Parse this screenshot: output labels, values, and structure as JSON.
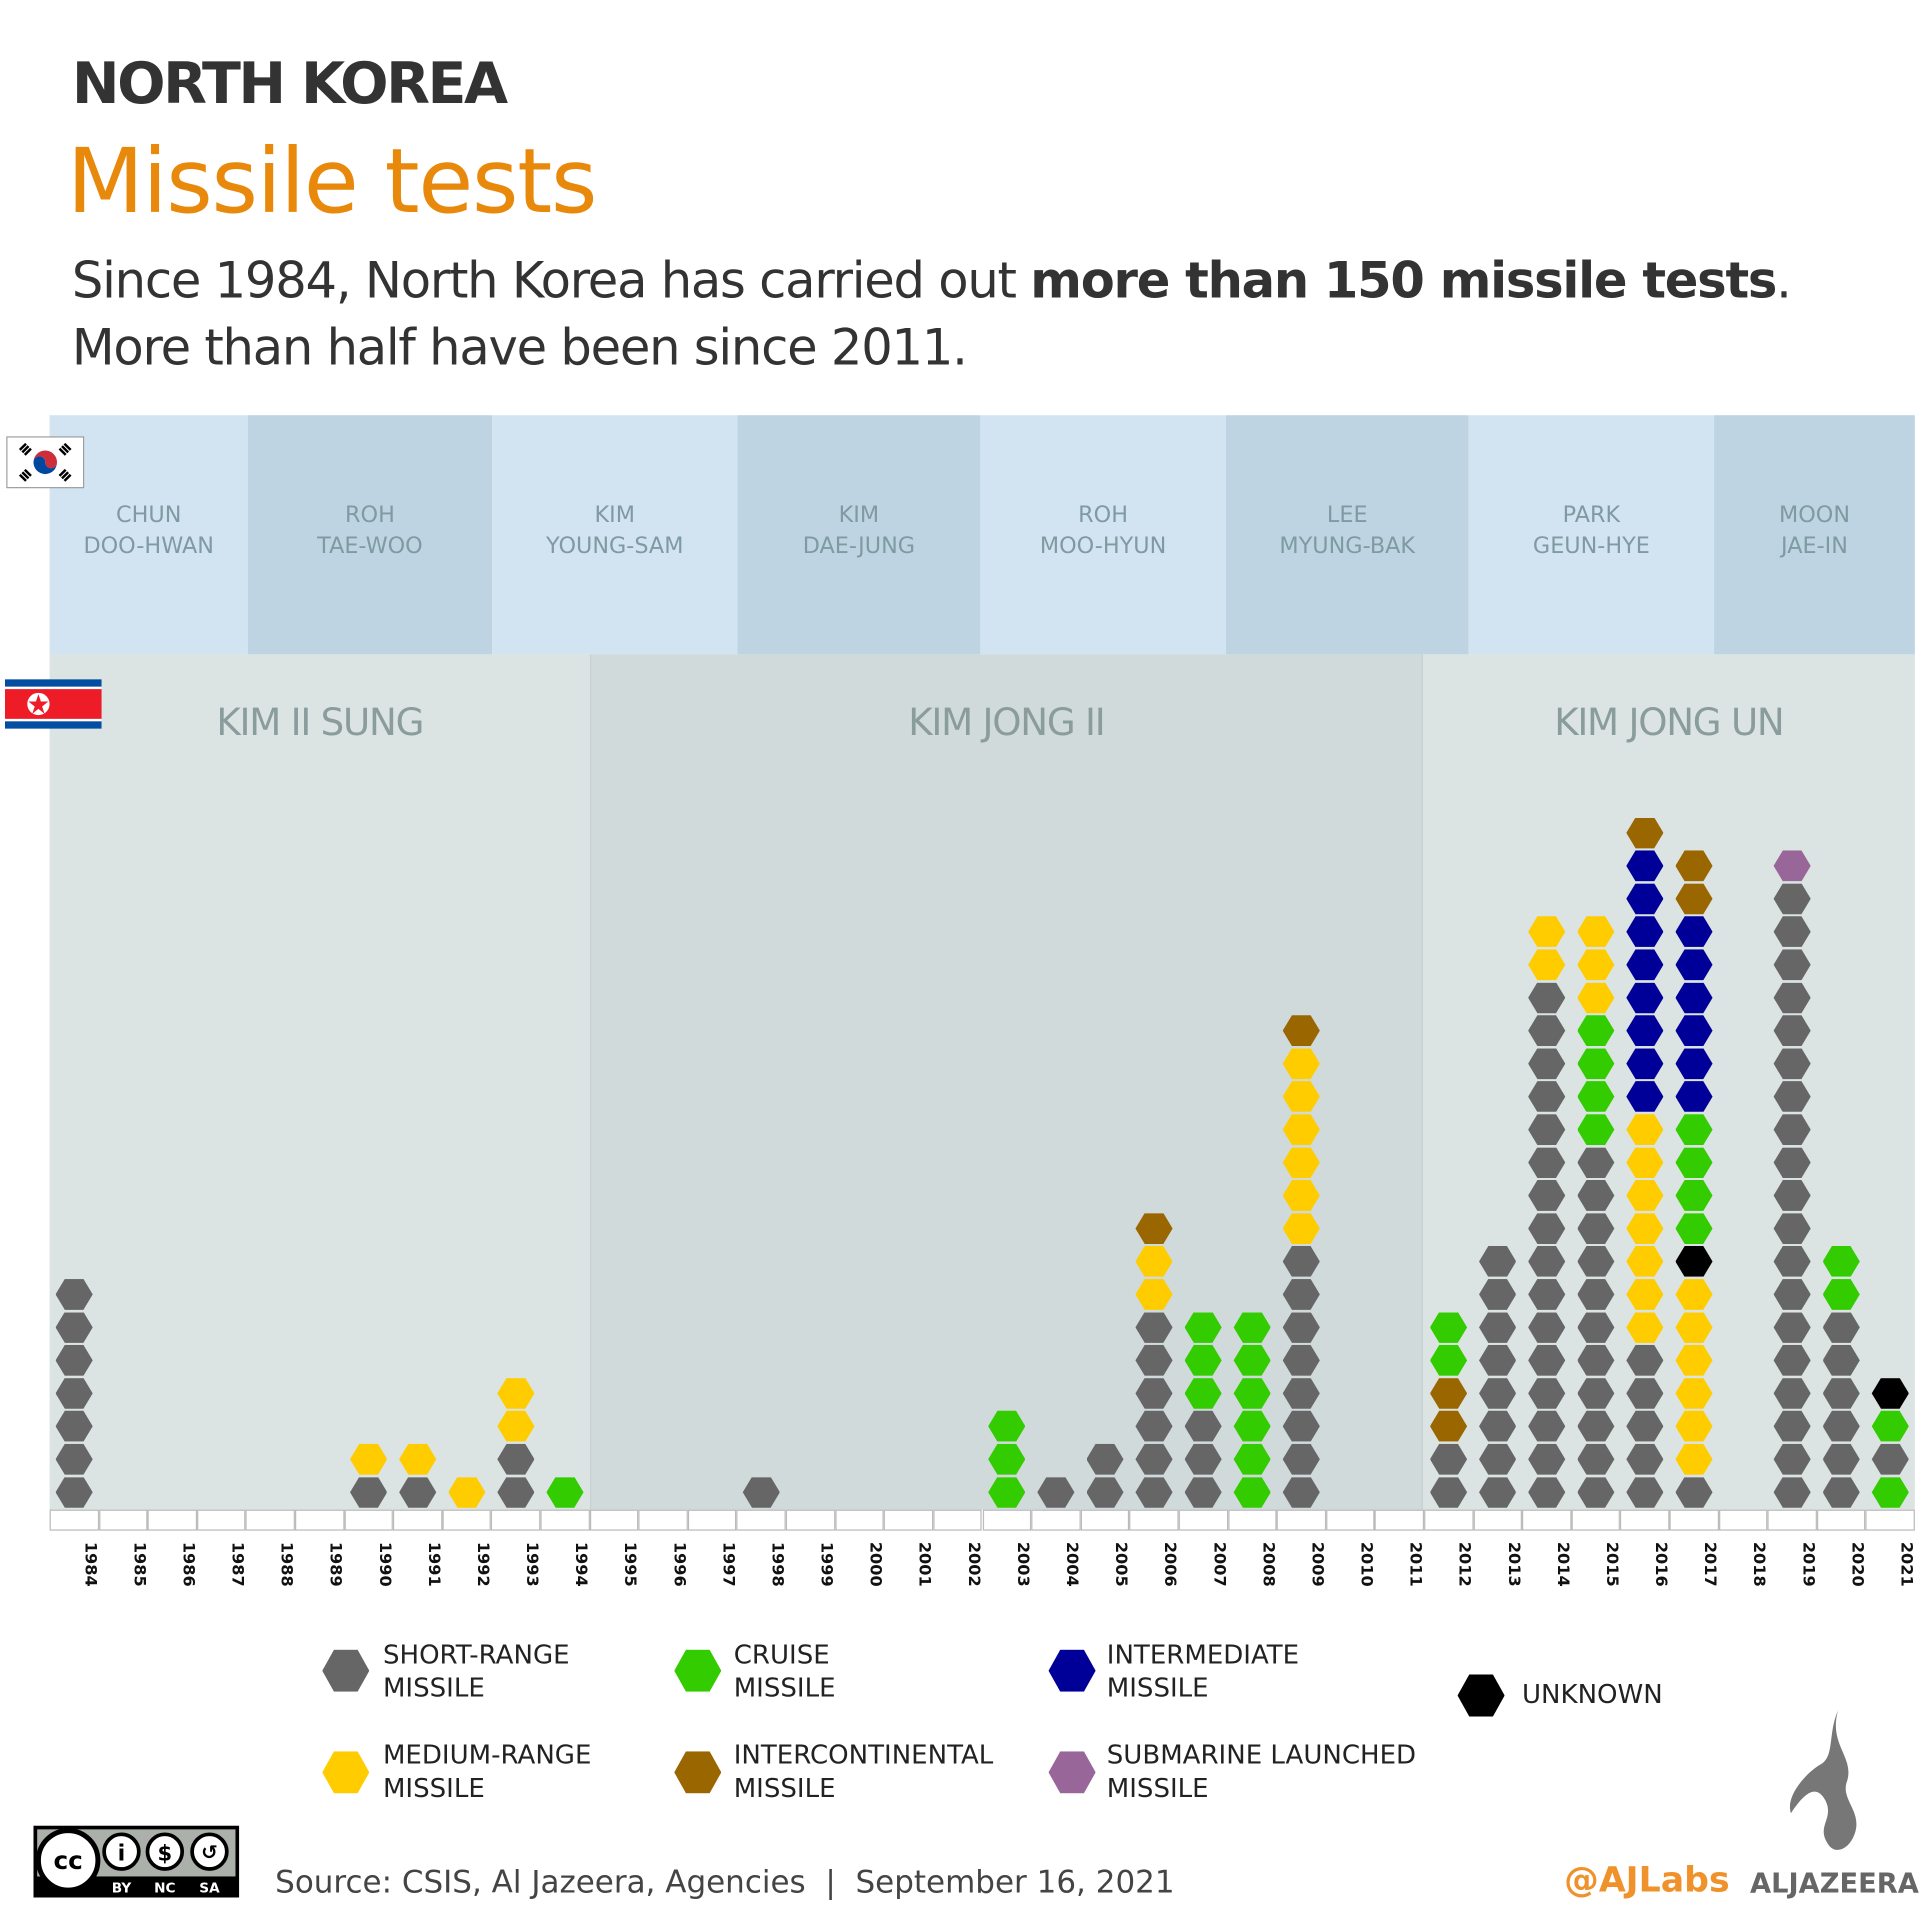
{
  "header": {
    "kicker": "NORTH KOREA",
    "title": "Missile tests",
    "subtitle_line1_pre": "Since 1984, North Korea has carried out ",
    "subtitle_line1_bold": "more than 150 missile tests",
    "subtitle_line1_post": ".",
    "subtitle_line2": "More than half have been since 2011."
  },
  "south_korea_presidents": [
    {
      "line1": "CHUN",
      "line2": "DOO-HWAN",
      "color": "#d2e4f2"
    },
    {
      "line1": "ROH",
      "line2": "TAE-WOO",
      "color": "#bed4e2"
    },
    {
      "line1": "KIM",
      "line2": "YOUNG-SAM",
      "color": "#d2e4f2"
    },
    {
      "line1": "KIM",
      "line2": "DAE-JUNG",
      "color": "#bed4e2"
    },
    {
      "line1": "ROH",
      "line2": "MOO-HYUN",
      "color": "#d2e4f2"
    },
    {
      "line1": "LEE",
      "line2": "MYUNG-BAK",
      "color": "#bed4e2"
    },
    {
      "line1": "PARK",
      "line2": "GEUN-HYE",
      "color": "#d2e4f2"
    },
    {
      "line1": "MOON",
      "line2": "JAE-IN",
      "color": "#bed4e2"
    }
  ],
  "north_korea_leaders": [
    {
      "name": "KIM Il SUNG",
      "display": "KIM II SUNG",
      "color": "#dbe4e3"
    },
    {
      "name": "KIM JONG Il",
      "display": "KIM JONG II",
      "color": "#d0dadb"
    },
    {
      "name": "KIM JONG UN",
      "display": "KIM JONG UN",
      "color": "#dbe4e3"
    }
  ],
  "chart_data": {
    "type": "stacked unit chart (hexagons)",
    "x_categories": [
      "1984",
      "1985",
      "1986",
      "1987",
      "1988",
      "1989",
      "1990",
      "1991",
      "1992",
      "1993",
      "1994",
      "1995",
      "1996",
      "1997",
      "1998",
      "1999",
      "2000",
      "2001",
      "2002",
      "2003",
      "2004",
      "2005",
      "2006",
      "2007",
      "2008",
      "2009",
      "2010",
      "2011",
      "2012",
      "2013",
      "2014",
      "2015",
      "2016",
      "2017",
      "2018",
      "2019",
      "2020",
      "2021"
    ],
    "types": {
      "SR": {
        "label1": "SHORT-RANGE",
        "label2": "MISSILE",
        "color": "#666666"
      },
      "CR": {
        "label1": "CRUISE",
        "label2": "MISSILE",
        "color": "#33cc00"
      },
      "IM": {
        "label1": "INTERMEDIATE",
        "label2": "MISSILE",
        "color": "#000099"
      },
      "UN": {
        "label1": "UNKNOWN",
        "label2": "",
        "color": "#000000"
      },
      "MR": {
        "label1": "MEDIUM-RANGE",
        "label2": "MISSILE",
        "color": "#ffcc00"
      },
      "IC": {
        "label1": "INTERCONTINENTAL",
        "label2": "MISSILE",
        "color": "#996600"
      },
      "SL": {
        "label1": "SUBMARINE LAUNCHED",
        "label2": "MISSILE",
        "color": "#996699"
      }
    },
    "stacks_bottom_to_top": {
      "1984": [
        "SR",
        "SR",
        "SR",
        "SR",
        "SR",
        "SR",
        "SR"
      ],
      "1990": [
        "SR",
        "MR"
      ],
      "1991": [
        "SR",
        "MR"
      ],
      "1992": [
        "MR"
      ],
      "1993": [
        "SR",
        "SR",
        "MR",
        "MR"
      ],
      "1994": [
        "CR"
      ],
      "1998": [
        "SR"
      ],
      "2003": [
        "CR",
        "CR",
        "CR"
      ],
      "2004": [
        "SR"
      ],
      "2005": [
        "SR",
        "SR"
      ],
      "2006": [
        "SR",
        "SR",
        "SR",
        "SR",
        "SR",
        "SR",
        "MR",
        "MR",
        "IC"
      ],
      "2007": [
        "SR",
        "SR",
        "SR",
        "CR",
        "CR",
        "CR"
      ],
      "2008": [
        "CR",
        "CR",
        "CR",
        "CR",
        "CR",
        "CR"
      ],
      "2009": [
        "SR",
        "SR",
        "SR",
        "SR",
        "SR",
        "SR",
        "SR",
        "SR",
        "MR",
        "MR",
        "MR",
        "MR",
        "MR",
        "MR",
        "IC"
      ],
      "2012": [
        "SR",
        "SR",
        "IC",
        "IC",
        "CR",
        "CR"
      ],
      "2013": [
        "SR",
        "SR",
        "SR",
        "SR",
        "SR",
        "SR",
        "SR",
        "SR"
      ],
      "2014": [
        "SR",
        "SR",
        "SR",
        "SR",
        "SR",
        "SR",
        "SR",
        "SR",
        "SR",
        "SR",
        "SR",
        "SR",
        "SR",
        "SR",
        "SR",
        "SR",
        "MR",
        "MR"
      ],
      "2015": [
        "SR",
        "SR",
        "SR",
        "SR",
        "SR",
        "SR",
        "SR",
        "SR",
        "SR",
        "SR",
        "SR",
        "CR",
        "CR",
        "CR",
        "CR",
        "MR",
        "MR",
        "MR"
      ],
      "2016": [
        "SR",
        "SR",
        "SR",
        "SR",
        "SR",
        "MR",
        "MR",
        "MR",
        "MR",
        "MR",
        "MR",
        "MR",
        "IM",
        "IM",
        "IM",
        "IM",
        "IM",
        "IM",
        "IM",
        "IM",
        "IC"
      ],
      "2017": [
        "SR",
        "MR",
        "MR",
        "MR",
        "MR",
        "MR",
        "MR",
        "UN",
        "CR",
        "CR",
        "CR",
        "CR",
        "IM",
        "IM",
        "IM",
        "IM",
        "IM",
        "IM",
        "IC",
        "IC"
      ],
      "2019": [
        "SR",
        "SR",
        "SR",
        "SR",
        "SR",
        "SR",
        "SR",
        "SR",
        "SR",
        "SR",
        "SR",
        "SR",
        "SR",
        "SR",
        "SR",
        "SR",
        "SR",
        "SR",
        "SR",
        "SL"
      ],
      "2020": [
        "SR",
        "SR",
        "SR",
        "SR",
        "SR",
        "SR",
        "CR",
        "CR"
      ],
      "2021": [
        "CR",
        "SR",
        "CR",
        "UN"
      ]
    }
  },
  "legend_order": [
    "SR",
    "CR",
    "IM",
    "UN",
    "MR",
    "IC",
    "SL"
  ],
  "footer": {
    "source": "Source: CSIS, Al Jazeera, Agencies  |  September 16, 2021",
    "ajlabs": "@AJLabs",
    "brand": "ALJAZEERA",
    "license": "CC BY NC SA"
  },
  "colors": {
    "accent": "#e8890c"
  }
}
